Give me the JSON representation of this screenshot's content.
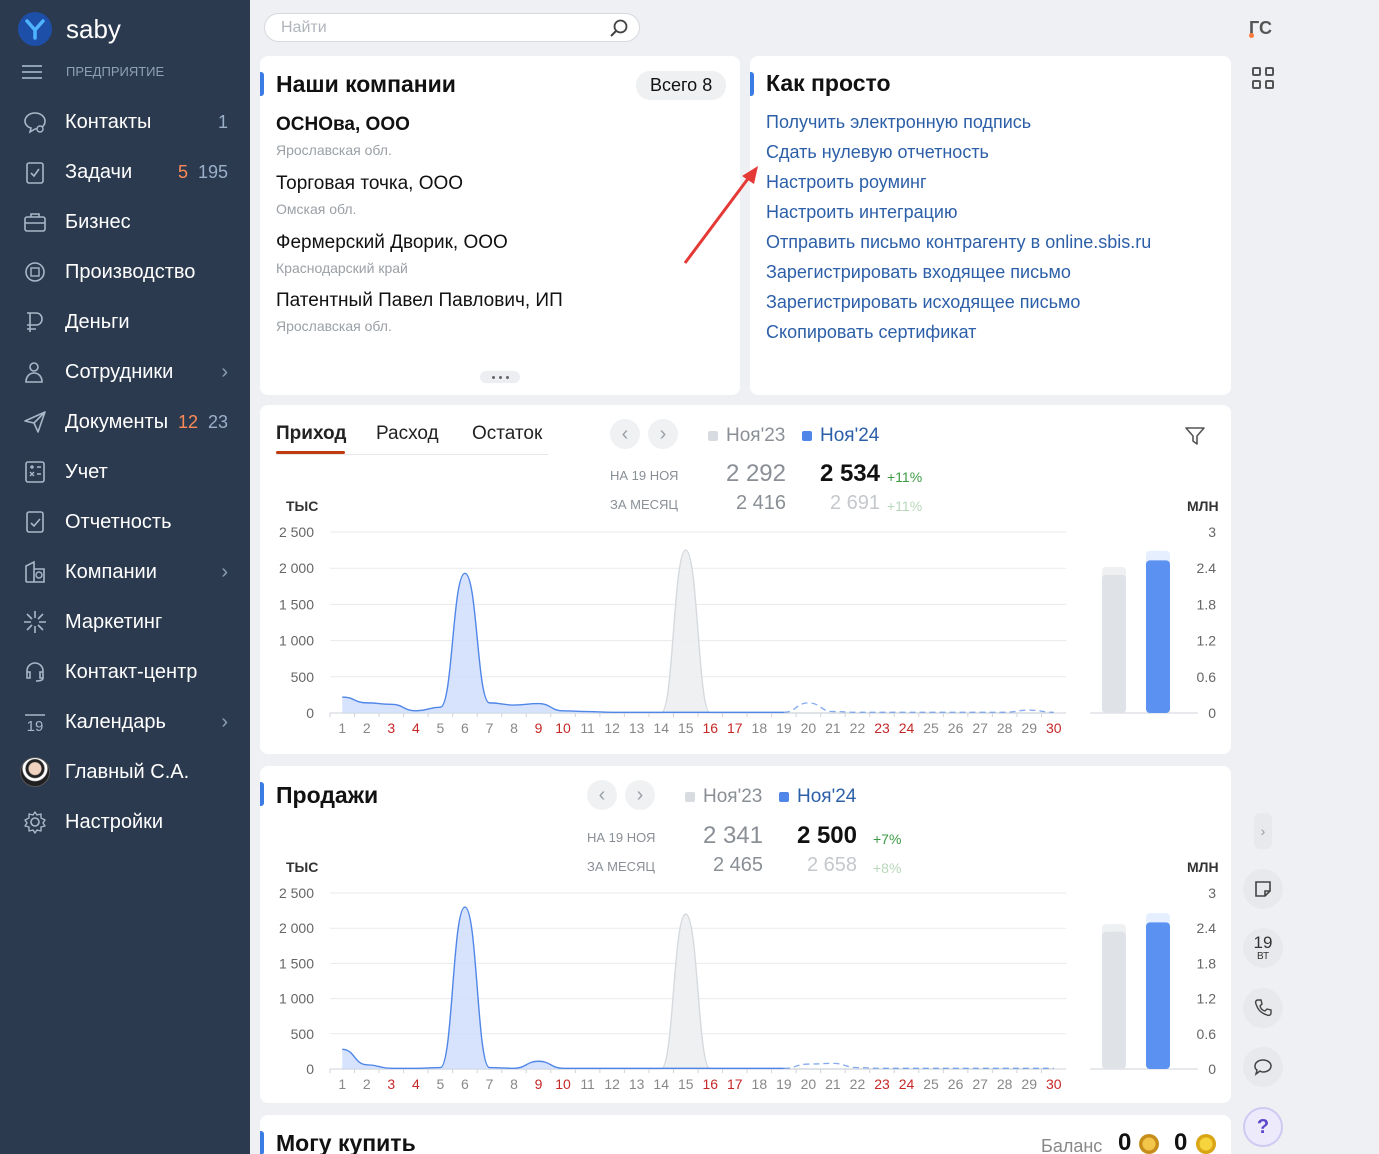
{
  "app": {
    "brand": "saby",
    "brand_color": "#2b3a4f",
    "accent": "#3a7be4"
  },
  "sidebar": {
    "enterprise_label": "ПРЕДПРИЯТИЕ",
    "items": [
      {
        "label": "Контакты",
        "icon": "chat-icon",
        "count_primary": "",
        "count_secondary": "1"
      },
      {
        "label": "Задачи",
        "icon": "clipboard-icon",
        "count_primary": "5",
        "count_secondary": "195"
      },
      {
        "label": "Бизнес",
        "icon": "briefcase-icon"
      },
      {
        "label": "Производство",
        "icon": "factory-icon"
      },
      {
        "label": "Деньги",
        "icon": "money-icon"
      },
      {
        "label": "Сотрудники",
        "icon": "people-icon",
        "chevron": true
      },
      {
        "label": "Документы",
        "icon": "send-icon",
        "count_primary": "12",
        "count_secondary": "23"
      },
      {
        "label": "Учет",
        "icon": "calculator-icon"
      },
      {
        "label": "Отчетность",
        "icon": "report-icon"
      },
      {
        "label": "Компании",
        "icon": "building-icon",
        "chevron": true
      },
      {
        "label": "Маркетинг",
        "icon": "sparkle-icon"
      },
      {
        "label": "Контакт-центр",
        "icon": "headset-icon"
      },
      {
        "label": "Календарь",
        "icon": "calendar-icon",
        "calendar_day": "19",
        "chevron": true
      },
      {
        "label": "Главный С.А.",
        "icon": "avatar"
      },
      {
        "label": "Настройки",
        "icon": "gear-icon"
      }
    ]
  },
  "search": {
    "placeholder": "Найти"
  },
  "user": {
    "initials": "ГС"
  },
  "companies": {
    "title": "Наши компании",
    "total_label": "Всего 8",
    "list": [
      {
        "name": "ОСНОва, ООО",
        "region": "Ярославская обл."
      },
      {
        "name": "Торговая точка, ООО",
        "region": "Омская обл."
      },
      {
        "name": "Фермерский Дворик, ООО",
        "region": "Краснодарский край"
      },
      {
        "name": "Патентный Павел Павлович, ИП",
        "region": "Ярославская обл."
      }
    ]
  },
  "howto": {
    "title": "Как просто",
    "links": [
      "Получить электронную подпись",
      "Сдать нулевую отчетность",
      "Настроить роуминг",
      "Настроить интеграцию",
      "Отправить письмо контрагенту в online.sbis.ru",
      "Зарегистрировать входящее письмо",
      "Зарегистрировать исходящее письмо",
      "Скопировать сертификат"
    ]
  },
  "cashflow": {
    "tabs": [
      "Приход",
      "Расход",
      "Остаток"
    ],
    "active_tab": "Приход",
    "legend_prev": "Ноя'23",
    "legend_curr": "Ноя'24",
    "label_day": "НА 19 НОЯ",
    "label_month": "ЗА МЕСЯЦ",
    "prev_day": "2 292",
    "curr_day": "2 534",
    "delta_day": "+11%",
    "prev_month": "2 416",
    "curr_month": "2 691",
    "delta_month": "+11%",
    "unit_left": "ТЫС",
    "unit_right": "МЛН"
  },
  "sales": {
    "title": "Продажи",
    "legend_prev": "Ноя'23",
    "legend_curr": "Ноя'24",
    "label_day": "НА 19 НОЯ",
    "label_month": "ЗА МЕСЯЦ",
    "prev_day": "2 341",
    "curr_day": "2 500",
    "delta_day": "+7%",
    "prev_month": "2 465",
    "curr_month": "2 658",
    "delta_month": "+8%",
    "unit_left": "ТЫС",
    "unit_right": "МЛН"
  },
  "buy": {
    "title": "Могу купить",
    "balance_label": "Баланс",
    "balance_1": "0",
    "balance_2": "0"
  },
  "rail": {
    "calendar_day": "19",
    "calendar_weekday": "ВТ",
    "help": "?"
  },
  "chart_data": [
    {
      "type": "area",
      "title": "Приход",
      "x": [
        1,
        2,
        3,
        4,
        5,
        6,
        7,
        8,
        9,
        10,
        11,
        12,
        13,
        14,
        15,
        16,
        17,
        18,
        19,
        20,
        21,
        22,
        23,
        24,
        25,
        26,
        27,
        28,
        29,
        30
      ],
      "weekend_days": [
        3,
        4,
        9,
        10,
        16,
        17,
        23,
        24,
        30
      ],
      "ylabel": "ТЫС",
      "y_ticks": [
        "2 500",
        "2 000",
        "1 500",
        "1 000",
        "500",
        "0"
      ],
      "ylim": [
        0,
        2500
      ],
      "series": [
        {
          "name": "Ноя'24",
          "color": "#4f86e8",
          "values": [
            220,
            140,
            120,
            30,
            80,
            1930,
            140,
            110,
            130,
            30,
            20,
            10,
            10,
            10,
            10,
            10,
            10,
            10,
            10,
            null,
            null,
            null,
            null,
            null,
            null,
            null,
            null,
            null,
            null,
            null
          ]
        },
        {
          "name": "Ноя'23",
          "color": "#c6ccd3",
          "values": [
            0,
            0,
            0,
            0,
            0,
            0,
            0,
            0,
            0,
            0,
            0,
            0,
            0,
            0,
            2250,
            0,
            0,
            0,
            0,
            0,
            0,
            0,
            0,
            0,
            0,
            0,
            0,
            0,
            0,
            0
          ]
        },
        {
          "name": "Ноя'24 forecast",
          "color": "#4f86e8",
          "dashed": true,
          "values": [
            null,
            null,
            null,
            null,
            null,
            null,
            null,
            null,
            null,
            null,
            null,
            null,
            null,
            null,
            null,
            null,
            null,
            null,
            10,
            140,
            20,
            10,
            10,
            10,
            10,
            10,
            10,
            10,
            40,
            10
          ]
        }
      ],
      "bars": {
        "y_ticks": [
          "3",
          "2.4",
          "1.8",
          "1.2",
          "0.6",
          "0"
        ],
        "ylim": [
          0,
          3
        ],
        "unit": "МЛН",
        "prev": 2.29,
        "prev_full": 2.42,
        "curr": 2.53,
        "curr_full": 2.69
      }
    },
    {
      "type": "area",
      "title": "Продажи",
      "x": [
        1,
        2,
        3,
        4,
        5,
        6,
        7,
        8,
        9,
        10,
        11,
        12,
        13,
        14,
        15,
        16,
        17,
        18,
        19,
        20,
        21,
        22,
        23,
        24,
        25,
        26,
        27,
        28,
        29,
        30
      ],
      "weekend_days": [
        3,
        4,
        9,
        10,
        16,
        17,
        23,
        24,
        30
      ],
      "ylabel": "ТЫС",
      "y_ticks": [
        "2 500",
        "2 000",
        "1 500",
        "1 000",
        "500",
        "0"
      ],
      "ylim": [
        0,
        2500
      ],
      "series": [
        {
          "name": "Ноя'24",
          "color": "#4f86e8",
          "values": [
            280,
            60,
            10,
            10,
            20,
            2300,
            20,
            10,
            110,
            10,
            10,
            10,
            10,
            10,
            10,
            10,
            10,
            10,
            10,
            null,
            null,
            null,
            null,
            null,
            null,
            null,
            null,
            null,
            null,
            null
          ]
        },
        {
          "name": "Ноя'23",
          "color": "#c6ccd3",
          "values": [
            0,
            0,
            0,
            0,
            0,
            0,
            0,
            0,
            0,
            0,
            0,
            0,
            0,
            0,
            2200,
            0,
            0,
            0,
            0,
            0,
            0,
            0,
            0,
            0,
            0,
            0,
            0,
            0,
            0,
            0
          ]
        },
        {
          "name": "Ноя'24 forecast",
          "color": "#4f86e8",
          "dashed": true,
          "values": [
            null,
            null,
            null,
            null,
            null,
            null,
            null,
            null,
            null,
            null,
            null,
            null,
            null,
            null,
            null,
            null,
            null,
            null,
            10,
            70,
            80,
            20,
            10,
            10,
            10,
            10,
            10,
            10,
            10,
            10
          ]
        }
      ],
      "bars": {
        "y_ticks": [
          "3",
          "2.4",
          "1.8",
          "1.2",
          "0.6",
          "0"
        ],
        "ylim": [
          0,
          3
        ],
        "unit": "МЛН",
        "prev": 2.34,
        "prev_full": 2.47,
        "curr": 2.5,
        "curr_full": 2.66
      }
    }
  ]
}
